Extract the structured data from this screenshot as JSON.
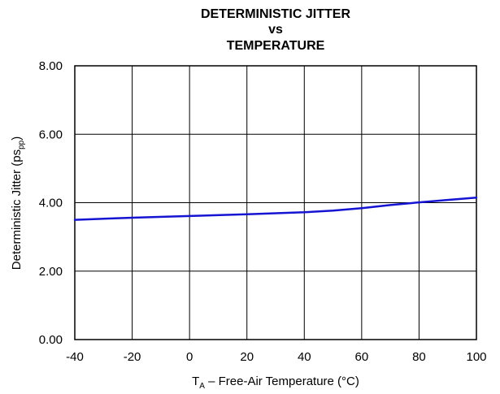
{
  "chart_data": {
    "type": "line",
    "title_lines": [
      "DETERMINISTIC JITTER",
      "vs",
      "TEMPERATURE"
    ],
    "xlabel": {
      "main": "T",
      "sub": "A",
      "rest": " – Free-Air Temperature (°C)"
    },
    "ylabel": {
      "main": "Deterministic Jitter (ps",
      "sub": "pp",
      "rest": ")"
    },
    "xlim": [
      -40,
      100
    ],
    "ylim": [
      0,
      8
    ],
    "x_ticks": [
      "-40",
      "-20",
      "0",
      "20",
      "40",
      "60",
      "80",
      "100"
    ],
    "y_ticks": [
      "0.00",
      "2.00",
      "4.00",
      "6.00",
      "8.00"
    ],
    "grid": true,
    "series": [
      {
        "color": "#1414d2",
        "x": [
          -40,
          -20,
          0,
          20,
          40,
          50,
          60,
          70,
          80,
          90,
          100
        ],
        "y": [
          3.5,
          3.56,
          3.61,
          3.66,
          3.72,
          3.77,
          3.84,
          3.93,
          4.01,
          4.08,
          4.15
        ]
      }
    ]
  }
}
